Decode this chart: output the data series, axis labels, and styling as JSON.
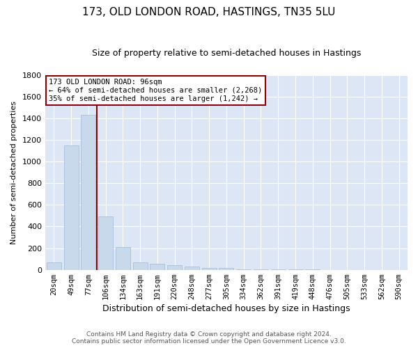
{
  "title": "173, OLD LONDON ROAD, HASTINGS, TN35 5LU",
  "subtitle": "Size of property relative to semi-detached houses in Hastings",
  "xlabel": "Distribution of semi-detached houses by size in Hastings",
  "ylabel": "Number of semi-detached properties",
  "categories": [
    "20sqm",
    "49sqm",
    "77sqm",
    "106sqm",
    "134sqm",
    "163sqm",
    "191sqm",
    "220sqm",
    "248sqm",
    "277sqm",
    "305sqm",
    "334sqm",
    "362sqm",
    "391sqm",
    "419sqm",
    "448sqm",
    "476sqm",
    "505sqm",
    "533sqm",
    "562sqm",
    "590sqm"
  ],
  "values": [
    70,
    1150,
    1430,
    490,
    210,
    70,
    55,
    40,
    30,
    20,
    15,
    5,
    5,
    3,
    2,
    2,
    1,
    1,
    1,
    1,
    1
  ],
  "bar_color": "#c9d9ec",
  "bar_edge_color": "#a0b8d8",
  "property_line_color": "#8b0000",
  "annotation_text": "173 OLD LONDON ROAD: 96sqm\n← 64% of semi-detached houses are smaller (2,268)\n35% of semi-detached houses are larger (1,242) →",
  "annotation_box_color": "#ffffff",
  "annotation_box_edge": "#8b0000",
  "ylim": [
    0,
    1800
  ],
  "yticks": [
    0,
    200,
    400,
    600,
    800,
    1000,
    1200,
    1400,
    1600,
    1800
  ],
  "footer_line1": "Contains HM Land Registry data © Crown copyright and database right 2024.",
  "footer_line2": "Contains public sector information licensed under the Open Government Licence v3.0.",
  "bg_color": "#ffffff",
  "plot_bg_color": "#dce6f5",
  "grid_color": "#ffffff",
  "title_fontsize": 11,
  "subtitle_fontsize": 9,
  "xlabel_fontsize": 9,
  "ylabel_fontsize": 8,
  "tick_fontsize": 8,
  "xtick_fontsize": 7.5
}
